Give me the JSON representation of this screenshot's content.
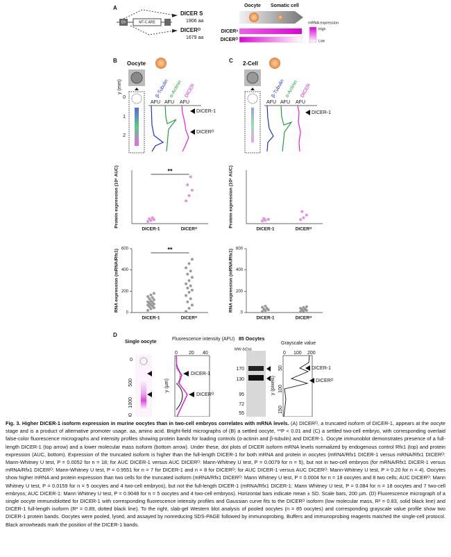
{
  "panel_a": {
    "label": "A",
    "exon": "E6",
    "promoter": "MT-C ARE",
    "isoform_s": "DICER S",
    "length_s": "1906 aa",
    "isoform_o": "DICERᴼ",
    "length_o": "1679 aa",
    "stage_1": "Oocyte",
    "stage_2": "Somatic cell",
    "legend_title": "mRNA expression",
    "legend_high": "High",
    "legend_low": "Low",
    "bar_s": "DICERˢ",
    "bar_o": "DICERᴼ"
  },
  "panel_b": {
    "label": "B",
    "stage": "Oocyte",
    "channels": [
      "β-Tubulin",
      "α-Actinin",
      "DICER"
    ],
    "units": [
      "AFU",
      "AFU",
      "AFU"
    ],
    "axis_label": "y (mm)",
    "ticks": [
      0,
      1,
      2
    ],
    "band_1": "DICER-1",
    "band_2": "DICERᴼ"
  },
  "panel_c": {
    "label": "C",
    "stage": "2-Cell",
    "channels": [
      "β-Tubulin",
      "α-Actinin",
      "DICER"
    ],
    "units": [
      "AFU",
      "AFU",
      "AFU"
    ],
    "band_1": "DICER-1"
  },
  "panel_d": {
    "label": "D",
    "title_1": "Single oocyte",
    "y_ticks_1": [
      0,
      500,
      1000,
      1500
    ],
    "y_label_1": "y (µm)",
    "x_label_1": "Fluorescence intensity (AFU)",
    "x_ticks_1": [
      0,
      20,
      40
    ],
    "band_1": "DICER-1",
    "band_2": "DICERᴼ",
    "title_2": "85 Oocytes",
    "mw_label": "MW (kDa)",
    "mw_ticks": [
      170,
      130,
      95,
      72,
      55
    ],
    "x_label_2": "Grayscale value",
    "x_ticks_2": [
      0,
      100,
      200
    ],
    "y_label_2": "y (pixels)",
    "y_ticks_2": [
      50,
      100,
      150
    ],
    "band_3": "DICER-1",
    "band_4": "DICERᴼ"
  },
  "chart_data": [
    {
      "type": "dot",
      "ylabel": "Protein expression (10⁶ AUC)",
      "categories": [
        "DICER-1",
        "DICERᴼ"
      ],
      "values": [
        [
          0.08,
          0.12,
          0.15,
          0.18,
          0.22
        ],
        [
          0.85,
          1.05,
          1.25,
          1.45,
          1.75
        ]
      ],
      "color": "#e37ad9",
      "ylim": [
        0,
        2
      ],
      "annotation": "**"
    },
    {
      "type": "dot",
      "ylabel": "RNA expression (mRNA/Rfx1)",
      "categories": [
        "DICER-1",
        "DICERᴼ"
      ],
      "values": [
        [
          20,
          35,
          45,
          55,
          60,
          70,
          75,
          80,
          90,
          95,
          100,
          110,
          120,
          130,
          140,
          150,
          165,
          180
        ],
        [
          10,
          40,
          70,
          100,
          130,
          160,
          190,
          210,
          230,
          250,
          270,
          300,
          330,
          360,
          390,
          420,
          460,
          500
        ]
      ],
      "color": "#8a8a8a",
      "ylim": [
        0,
        600
      ],
      "yticks": [
        0,
        200,
        400,
        600
      ],
      "annotation": "**"
    },
    {
      "type": "dot",
      "ylabel": "Protein expression (10⁶ AUC)",
      "categories": [
        "DICER-1",
        "DICERᴼ"
      ],
      "values": [
        [
          0.1,
          0.13,
          0.16,
          0.19
        ],
        [
          0.15,
          0.22,
          0.32,
          0.45
        ]
      ],
      "color": "#e37ad9",
      "ylim": [
        0,
        2
      ]
    },
    {
      "type": "dot",
      "ylabel": "RNA expression (mRNA/Rfx1)",
      "categories": [
        "DICER-1",
        "DICERᴼ"
      ],
      "values": [
        [
          10,
          18,
          25,
          32,
          40,
          50,
          60
        ],
        [
          8,
          14,
          20,
          26,
          33,
          40,
          48,
          55
        ]
      ],
      "color": "#8a8a8a",
      "ylim": [
        0,
        600
      ],
      "yticks": [
        0,
        200,
        400,
        600
      ]
    }
  ],
  "caption": {
    "title": "Fig. 3. Higher DICER-1 isoform expression in murine oocytes than in two-cell embryos correlates with mRNA levels.",
    "body": "(A) DICERᴼ, a truncated isoform of DICER-1, appears at the oocyte stage and is a product of alternative promoter usage. aa, amino acid. Bright-field micrographs of (B) a settled oocyte, **P < 0.01 and (C) a settled two-cell embryo, with corresponding overlaid false-color fluorescence micrographs and intensity profiles showing protein bands for loading controls (α-actinin and β-tubulin) and DICER-1. Oocyte immunoblot demonstrates presence of a full-length DICER-1 (top arrow) and a lower molecular mass isoform (bottom arrow). Under these, dot plots of DICER isoform mRNA levels normalized by endogenous control Rfx1 (top) and protein expression (AUC, bottom). Expression of the truncated isoform is higher than the full-length DICER-1 for both mRNA and protein in oocytes (mRNA/Rfx1 DICER-1 versus mRNA/Rfx1 DICERᴼ: Mann-Whitney U test, P = 0.0052 for n = 18; for AUC DICER-1 versus AUC DICERᴼ: Mann-Whitney U test, P = 0.0079 for n = 5), but not in two-cell embryos (for mRNA/Rfx1 DICER-1 versus mRNA/Rfx1 DICERᴼ: Mann-Whitney U test, P = 0.9551 for n = 7 for DICER-1 and n = 8 for DICERᴼ; for AUC DICER-1 versus AUC DICERᴼ: Mann-Whitney U test, P = 0.20 for n = 4). Oocytes show higher mRNA and protein expression than two cells for the truncated isoform (mRNA/Rfx1 DICERᴼ: Mann Whitney U test, P = 0.0004 for n = 18 oocytes and 8 two cells; AUC DICERᴼ: Mann Whitney U test, P = 0.0159 for n = 5 oocytes and 4 two-cell embryos), but not the full-length DICER-1 (mRNA/Rfx1 DICER-1: Mann Whitney U test, P = 0.084 for n = 18 oocytes and 7 two-cell embryos; AUC DICER-1: Mann Whitney U test, P = 0.9048 for n = 5 oocytes and 4 two-cell embryos). Horizontal bars indicate mean ± SD. Scale bars, 200 µm. (D) Fluorescence micrograph of a single oocyte immunoblotted for DICER-1 with corresponding fluorescence intensity profiles and Gaussian curve fits to the DICERᴼ isoform (low molecular mass, R² = 0.83, solid black line) and DICER-1 full-length isoform (R² = 0.89, dotted black line). To the right, slab-gel Western blot analysis of pooled oocytes (n = 85 oocytes) and corresponding grayscale value profile show two DICER-1 protein bands. Oocytes were pooled, lysed, and assayed by nonreducing SDS-PAGE followed by immunoprobing. Buffers and immunoprobing reagents matched the single-cell protocol. Black arrowheads mark the position of the DICER-1 bands."
  }
}
